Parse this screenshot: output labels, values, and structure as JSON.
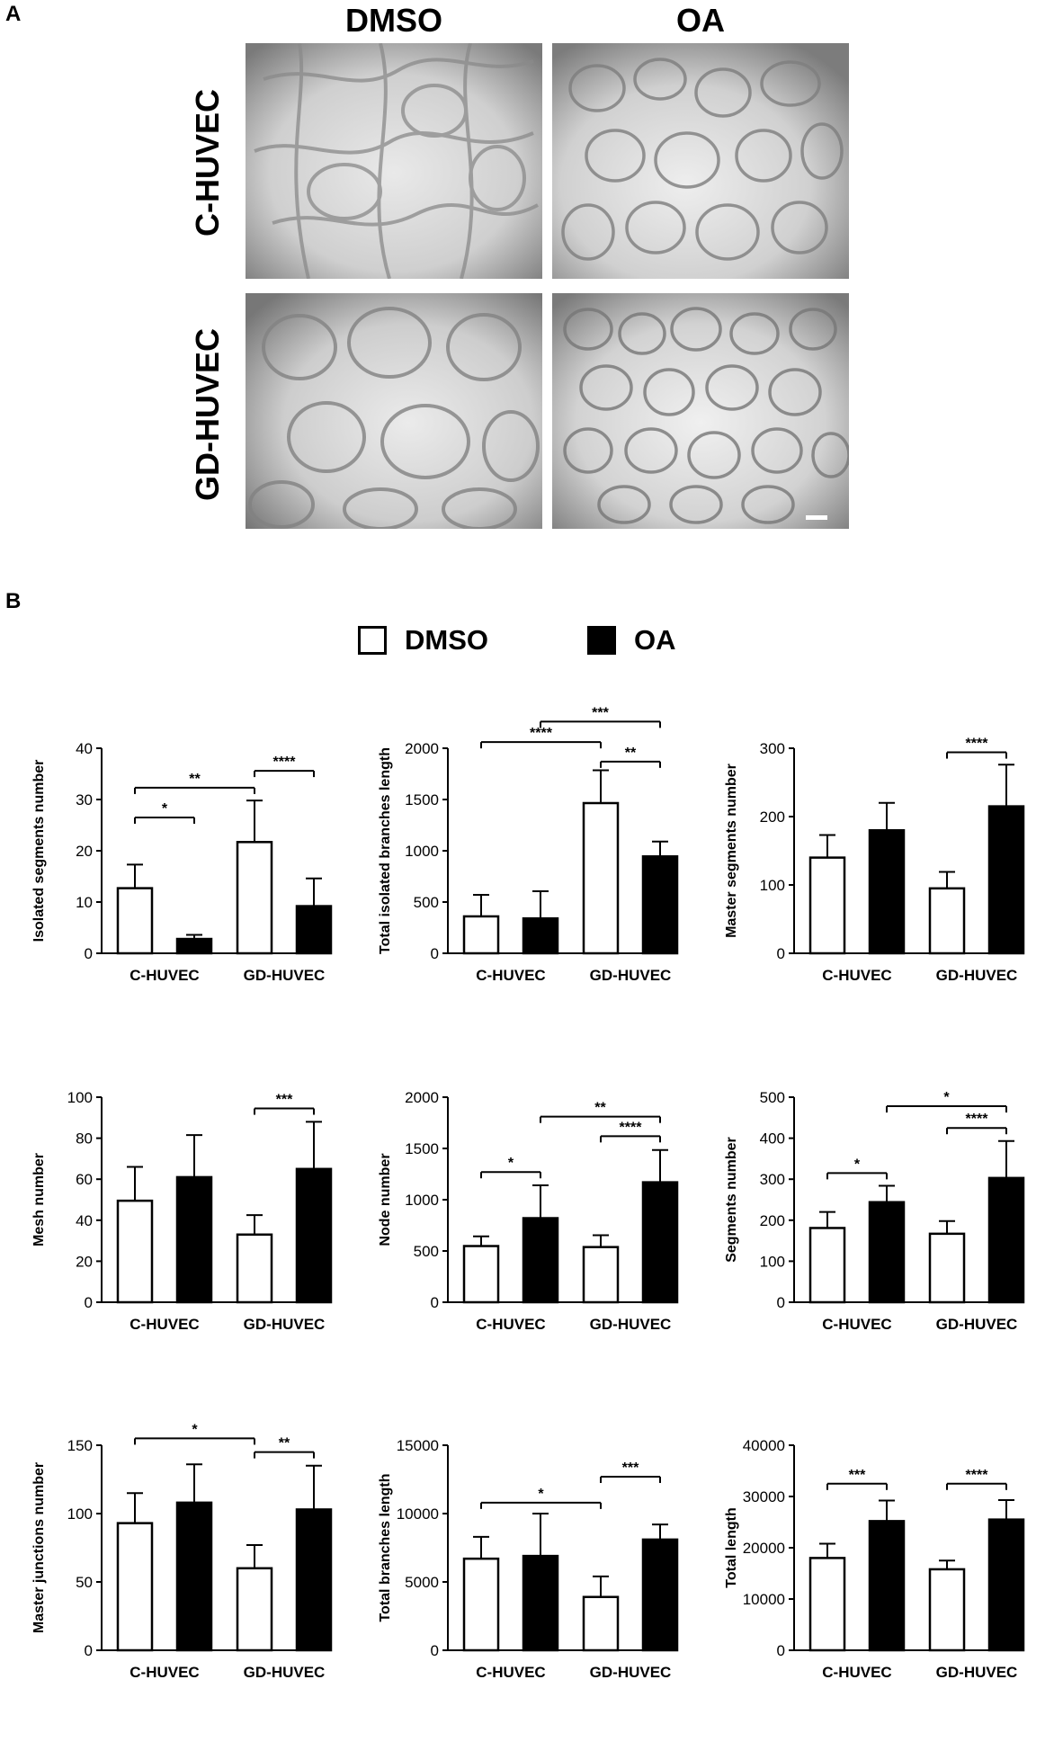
{
  "panel_a": {
    "letter": "A",
    "columns": [
      "DMSO",
      "OA"
    ],
    "rows": [
      "C-HUVEC",
      "GD-HUVEC"
    ],
    "image_descriptions": [
      {
        "row": "C-HUVEC",
        "col": "DMSO"
      },
      {
        "row": "C-HUVEC",
        "col": "OA"
      },
      {
        "row": "GD-HUVEC",
        "col": "DMSO"
      },
      {
        "row": "GD-HUVEC",
        "col": "OA"
      }
    ]
  },
  "panel_b": {
    "letter": "B",
    "legend": [
      {
        "label": "DMSO",
        "fill": "#ffffff"
      },
      {
        "label": "OA",
        "fill": "#000000"
      }
    ]
  },
  "colors": {
    "dmso": "#ffffff",
    "oa": "#000000",
    "stroke": "#000000"
  },
  "chart_data": [
    {
      "type": "bar",
      "ylabel": "Isolated segments number",
      "categories": [
        "C-HUVEC",
        "GD-HUVEC"
      ],
      "ylim": [
        0,
        40
      ],
      "yticks": [
        0,
        10,
        20,
        30,
        40
      ],
      "series": [
        {
          "name": "DMSO",
          "values": [
            12.7,
            21.7
          ],
          "errors": [
            4.6,
            8.1
          ]
        },
        {
          "name": "OA",
          "values": [
            2.8,
            9.2
          ],
          "errors": [
            0.8,
            5.4
          ]
        }
      ],
      "significance": [
        {
          "from": [
            0,
            0
          ],
          "to": [
            0,
            1
          ],
          "y": 26.5,
          "label": "*"
        },
        {
          "from": [
            0,
            0
          ],
          "to": [
            1,
            0
          ],
          "y": 32.3,
          "label": "**"
        },
        {
          "from": [
            1,
            0
          ],
          "to": [
            1,
            1
          ],
          "y": 35.6,
          "label": "****"
        }
      ]
    },
    {
      "type": "bar",
      "ylabel": "Total isolated branches length",
      "categories": [
        "C-HUVEC",
        "GD-HUVEC"
      ],
      "ylim": [
        0,
        2000
      ],
      "yticks": [
        0,
        500,
        1000,
        1500,
        2000
      ],
      "series": [
        {
          "name": "DMSO",
          "values": [
            360,
            1465
          ],
          "errors": [
            210,
            320
          ]
        },
        {
          "name": "OA",
          "values": [
            340,
            945
          ],
          "errors": [
            265,
            145
          ]
        }
      ],
      "significance": [
        {
          "from": [
            0,
            0
          ],
          "to": [
            1,
            0
          ],
          "y": 2060,
          "label": "****"
        },
        {
          "from": [
            1,
            0
          ],
          "to": [
            1,
            1
          ],
          "y": 1870,
          "label": "**"
        },
        {
          "from": [
            0,
            1
          ],
          "to": [
            1,
            1
          ],
          "y": 2260,
          "label": "***"
        }
      ]
    },
    {
      "type": "bar",
      "ylabel": "Master segments number",
      "categories": [
        "C-HUVEC",
        "GD-HUVEC"
      ],
      "ylim": [
        0,
        300
      ],
      "yticks": [
        0,
        100,
        200,
        300
      ],
      "series": [
        {
          "name": "DMSO",
          "values": [
            140,
            95
          ],
          "errors": [
            33,
            24
          ]
        },
        {
          "name": "OA",
          "values": [
            180,
            215
          ],
          "errors": [
            40,
            61
          ]
        }
      ],
      "significance": [
        {
          "from": [
            1,
            0
          ],
          "to": [
            1,
            1
          ],
          "y": 294,
          "label": "****"
        }
      ]
    },
    {
      "type": "bar",
      "ylabel": "Mesh number",
      "categories": [
        "C-HUVEC",
        "GD-HUVEC"
      ],
      "ylim": [
        0,
        100
      ],
      "yticks": [
        0,
        20,
        40,
        60,
        80,
        100
      ],
      "series": [
        {
          "name": "DMSO",
          "values": [
            49.5,
            33
          ],
          "errors": [
            16.5,
            9.5
          ]
        },
        {
          "name": "OA",
          "values": [
            61,
            65
          ],
          "errors": [
            20.5,
            23
          ]
        }
      ],
      "significance": [
        {
          "from": [
            1,
            0
          ],
          "to": [
            1,
            1
          ],
          "y": 94.5,
          "label": "***"
        }
      ]
    },
    {
      "type": "bar",
      "ylabel": "Node number",
      "categories": [
        "C-HUVEC",
        "GD-HUVEC"
      ],
      "ylim": [
        0,
        2000
      ],
      "yticks": [
        0,
        500,
        1000,
        1500,
        2000
      ],
      "series": [
        {
          "name": "DMSO",
          "values": [
            548,
            538
          ],
          "errors": [
            95,
            115
          ]
        },
        {
          "name": "OA",
          "values": [
            820,
            1170
          ],
          "errors": [
            320,
            315
          ]
        }
      ],
      "significance": [
        {
          "from": [
            0,
            0
          ],
          "to": [
            0,
            1
          ],
          "y": 1270,
          "label": "*"
        },
        {
          "from": [
            1,
            0
          ],
          "to": [
            1,
            1
          ],
          "y": 1620,
          "label": "****"
        },
        {
          "from": [
            0,
            1
          ],
          "to": [
            1,
            1
          ],
          "y": 1810,
          "label": "**"
        }
      ]
    },
    {
      "type": "bar",
      "ylabel": "Segments number",
      "categories": [
        "C-HUVEC",
        "GD-HUVEC"
      ],
      "ylim": [
        0,
        500
      ],
      "yticks": [
        0,
        100,
        200,
        300,
        400,
        500
      ],
      "series": [
        {
          "name": "DMSO",
          "values": [
            181,
            167
          ],
          "errors": [
            39,
            31
          ]
        },
        {
          "name": "OA",
          "values": [
            244,
            303
          ],
          "errors": [
            40,
            90
          ]
        }
      ],
      "significance": [
        {
          "from": [
            0,
            0
          ],
          "to": [
            0,
            1
          ],
          "y": 315,
          "label": "*"
        },
        {
          "from": [
            1,
            0
          ],
          "to": [
            1,
            1
          ],
          "y": 425,
          "label": "****"
        },
        {
          "from": [
            0,
            1
          ],
          "to": [
            1,
            1
          ],
          "y": 478,
          "label": "*"
        }
      ]
    },
    {
      "type": "bar",
      "ylabel": "Master junctions number",
      "categories": [
        "C-HUVEC",
        "GD-HUVEC"
      ],
      "ylim": [
        0,
        150
      ],
      "yticks": [
        0,
        50,
        100,
        150
      ],
      "series": [
        {
          "name": "DMSO",
          "values": [
            93,
            60
          ],
          "errors": [
            22,
            17
          ]
        },
        {
          "name": "OA",
          "values": [
            108,
            103
          ],
          "errors": [
            28,
            32
          ]
        }
      ],
      "significance": [
        {
          "from": [
            0,
            0
          ],
          "to": [
            1,
            0
          ],
          "y": 155,
          "label": "*"
        },
        {
          "from": [
            1,
            0
          ],
          "to": [
            1,
            1
          ],
          "y": 145,
          "label": "**"
        }
      ]
    },
    {
      "type": "bar",
      "ylabel": "Total branches length",
      "categories": [
        "C-HUVEC",
        "GD-HUVEC"
      ],
      "ylim": [
        0,
        15000
      ],
      "yticks": [
        0,
        5000,
        10000,
        15000
      ],
      "series": [
        {
          "name": "DMSO",
          "values": [
            6700,
            3900
          ],
          "errors": [
            1600,
            1500
          ]
        },
        {
          "name": "OA",
          "values": [
            6900,
            8100
          ],
          "errors": [
            3100,
            1100
          ]
        }
      ],
      "significance": [
        {
          "from": [
            0,
            0
          ],
          "to": [
            1,
            0
          ],
          "y": 10800,
          "label": "*"
        },
        {
          "from": [
            1,
            0
          ],
          "to": [
            1,
            1
          ],
          "y": 12700,
          "label": "***"
        }
      ]
    },
    {
      "type": "bar",
      "ylabel": "Total length",
      "categories": [
        "C-HUVEC",
        "GD-HUVEC"
      ],
      "ylim": [
        0,
        40000
      ],
      "yticks": [
        0,
        10000,
        20000,
        30000,
        40000
      ],
      "series": [
        {
          "name": "DMSO",
          "values": [
            18000,
            15800
          ],
          "errors": [
            2800,
            1700
          ]
        },
        {
          "name": "OA",
          "values": [
            25200,
            25500
          ],
          "errors": [
            4000,
            3800
          ]
        }
      ],
      "significance": [
        {
          "from": [
            0,
            0
          ],
          "to": [
            0,
            1
          ],
          "y": 32500,
          "label": "***"
        },
        {
          "from": [
            1,
            0
          ],
          "to": [
            1,
            1
          ],
          "y": 32500,
          "label": "****"
        }
      ]
    }
  ]
}
